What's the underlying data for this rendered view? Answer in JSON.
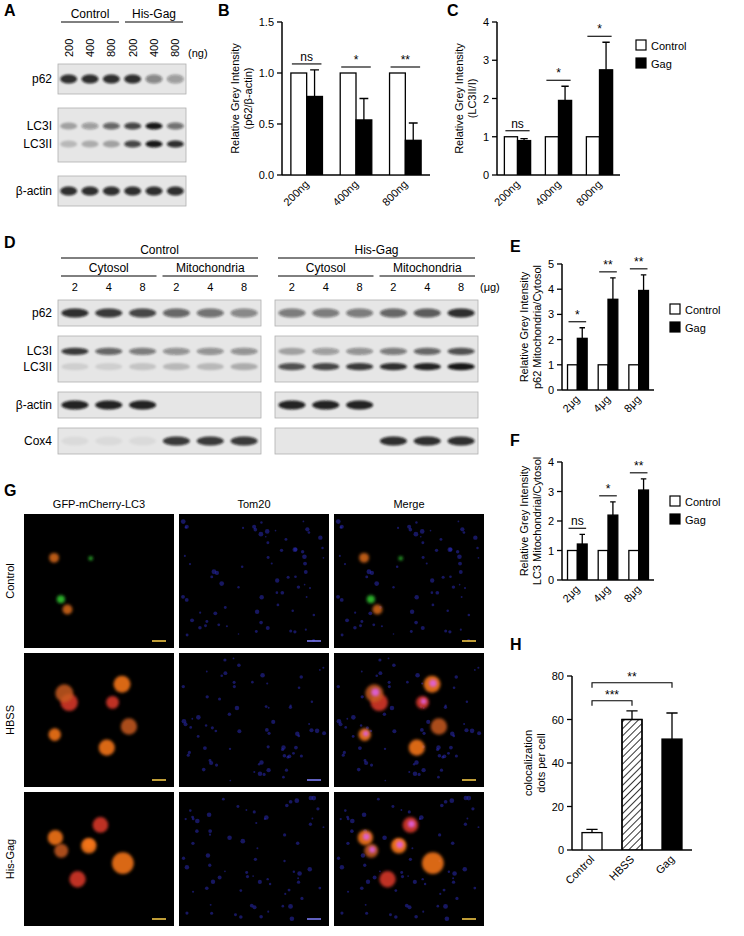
{
  "chart_data": [
    {
      "panel": "B",
      "type": "bar",
      "ylabel": "Relative Grey Intensity\n(p62/β-actin)",
      "categories": [
        "200ng",
        "400ng",
        "800ng"
      ],
      "series": [
        {
          "color": "#ffffff",
          "values": [
            1,
            1,
            1
          ]
        },
        {
          "color": "#000000",
          "values": [
            0.77,
            0.54,
            0.34
          ],
          "errors": [
            0.26,
            0.21,
            0.17
          ]
        }
      ],
      "significance": [
        "ns",
        "*",
        "**"
      ],
      "ylim": [
        0,
        1.5
      ],
      "yticks": [
        {
          "value": 0,
          "label": "0.0"
        },
        0.5,
        {
          "value": 1,
          "label": "1.0"
        },
        1.5
      ]
    },
    {
      "panel": "C",
      "type": "bar",
      "ylabel": "Relative Grey Intensity\n(LC3II/I)",
      "categories": [
        "200ng",
        "400ng",
        "800ng"
      ],
      "series": [
        {
          "name": "Control",
          "color": "#ffffff",
          "values": [
            1,
            1,
            1
          ]
        },
        {
          "name": "Gag",
          "color": "#000000",
          "values": [
            0.9,
            1.95,
            2.75
          ],
          "errors": [
            0.05,
            0.37,
            0.72
          ]
        }
      ],
      "significance": [
        "ns",
        "*",
        "*"
      ],
      "ylim": [
        0,
        4
      ],
      "yticks": [
        0,
        1,
        2,
        3,
        4
      ],
      "legend": "right"
    },
    {
      "panel": "E",
      "type": "bar",
      "ylabel": "Relative Grey Intensity\np62 Mitochondria/Cytosol",
      "categories": [
        "2μg",
        "4μg",
        "8μg"
      ],
      "series": [
        {
          "name": "Control",
          "color": "#ffffff",
          "values": [
            1,
            1,
            1
          ]
        },
        {
          "name": "Gag",
          "color": "#000000",
          "values": [
            2.05,
            3.6,
            3.95
          ],
          "errors": [
            0.42,
            0.85,
            0.62
          ]
        }
      ],
      "significance": [
        "*",
        "**",
        "**"
      ],
      "ylim": [
        0,
        5
      ],
      "yticks": [
        0,
        1,
        2,
        3,
        4,
        5
      ],
      "legend": "right"
    },
    {
      "panel": "F",
      "type": "bar",
      "ylabel": "Relative Grey Intensity\nLC3 Mitochondrial/Cytosol",
      "categories": [
        "2μg",
        "4μg",
        "8μg"
      ],
      "series": [
        {
          "name": "Control",
          "color": "#ffffff",
          "values": [
            1,
            1,
            1
          ]
        },
        {
          "name": "Gag",
          "color": "#000000",
          "values": [
            1.22,
            2.2,
            3.05
          ],
          "errors": [
            0.33,
            0.45,
            0.38
          ]
        }
      ],
      "significance": [
        "ns",
        "*",
        "**"
      ],
      "ylim": [
        0,
        4
      ],
      "yticks": [
        0,
        1,
        2,
        3,
        4
      ],
      "legend": "right"
    },
    {
      "panel": "H",
      "type": "bar",
      "ylabel": "colocalization\ndots per cell",
      "categories": [
        "Control",
        "HBSS",
        "Gag"
      ],
      "values": [
        8,
        60,
        51
      ],
      "errors": [
        1.5,
        4,
        12
      ],
      "colors": [
        "#ffffff",
        "#ffffff",
        "#000000"
      ],
      "comparisons": [
        {
          "from": "Control",
          "to": "HBSS",
          "label": "***"
        },
        {
          "from": "Control",
          "to": "Gag",
          "label": "**"
        }
      ],
      "ylim": [
        0,
        80
      ],
      "yticks": [
        0,
        20,
        40,
        60,
        80
      ]
    }
  ],
  "blots": [
    {
      "panel": "A",
      "unit": "(ng)",
      "sections": [
        {
          "groups": [
            {
              "label": "Control",
              "lanes": [
                "200",
                "400",
                "800"
              ]
            },
            {
              "label": "His-Gag",
              "lanes": [
                "200",
                "400",
                "800"
              ]
            }
          ]
        }
      ],
      "rows": [
        {
          "labels": [
            "p62"
          ],
          "bands": [
            [
              0.85,
              0.85,
              0.85,
              0.85,
              0.45,
              0.35
            ]
          ]
        },
        {
          "labels": [
            "LC3I",
            "LC3II"
          ],
          "bands": [
            [
              0.3,
              0.35,
              0.6,
              0.75,
              0.95,
              0.55
            ],
            [
              0.2,
              0.25,
              0.3,
              0.75,
              0.95,
              0.85
            ]
          ]
        },
        {
          "labels": [
            "β-actin"
          ],
          "bands": [
            [
              0.85,
              0.85,
              0.85,
              0.85,
              0.85,
              0.85
            ]
          ]
        }
      ]
    },
    {
      "panel": "D",
      "unit": "(μg)",
      "sections": [
        {
          "label": "Control",
          "groups": [
            {
              "label": "Cytosol",
              "lanes": [
                "2",
                "4",
                "8"
              ]
            },
            {
              "label": "Mitochondria",
              "lanes": [
                "2",
                "4",
                "8"
              ]
            }
          ]
        },
        {
          "label": "His-Gag",
          "groups": [
            {
              "label": "Cytosol",
              "lanes": [
                "2",
                "4",
                "8"
              ]
            },
            {
              "label": "Mitochondria",
              "lanes": [
                "2",
                "4",
                "8"
              ]
            }
          ]
        }
      ],
      "rows": [
        {
          "labels": [
            "p62"
          ],
          "bands": [
            [
              0.85,
              0.8,
              0.75,
              0.6,
              0.55,
              0.45,
              0.5,
              0.5,
              0.5,
              0.6,
              0.65,
              0.85
            ]
          ]
        },
        {
          "labels": [
            "LC3I",
            "LC3II"
          ],
          "bands": [
            [
              0.8,
              0.6,
              0.5,
              0.4,
              0.4,
              0.4,
              0.3,
              0.35,
              0.4,
              0.5,
              0.6,
              0.7
            ],
            [
              0.1,
              0.1,
              0.15,
              0.2,
              0.2,
              0.25,
              0.7,
              0.75,
              0.8,
              0.85,
              0.9,
              0.95
            ]
          ]
        },
        {
          "labels": [
            "β-actin"
          ],
          "bands": [
            [
              0.9,
              0.9,
              0.9,
              0,
              0,
              0,
              0.9,
              0.9,
              0.9,
              0,
              0,
              0
            ]
          ]
        },
        {
          "labels": [
            "Cox4"
          ],
          "bands": [
            [
              0.05,
              0.05,
              0.05,
              0.8,
              0.8,
              0.8,
              0,
              0,
              0,
              0.85,
              0.85,
              0.85
            ]
          ]
        }
      ]
    }
  ],
  "images": {
    "panel": "G",
    "columns": [
      "GFP-mCherry-LC3",
      "Tom20",
      "Merge"
    ],
    "rows": [
      "Control",
      "HBSS",
      "His-Gag"
    ]
  }
}
